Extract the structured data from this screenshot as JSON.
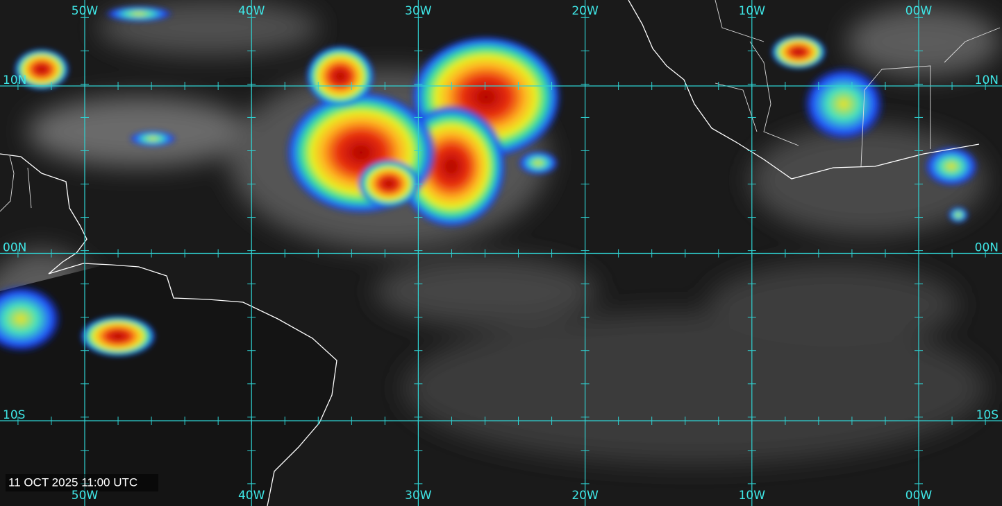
{
  "map": {
    "top_longitude_labels": [
      "50W",
      "40W",
      "30W",
      "20W",
      "10W",
      "00W"
    ],
    "bottom_longitude_labels": [
      "50W",
      "40W",
      "30W",
      "20W",
      "10W",
      "00W"
    ],
    "left_latitude_labels": [
      "10N",
      "00N",
      "10S"
    ],
    "right_latitude_labels": [
      "10N",
      "00N",
      "10S"
    ],
    "timestamp": "11 OCT 2025 11:00 UTC"
  }
}
